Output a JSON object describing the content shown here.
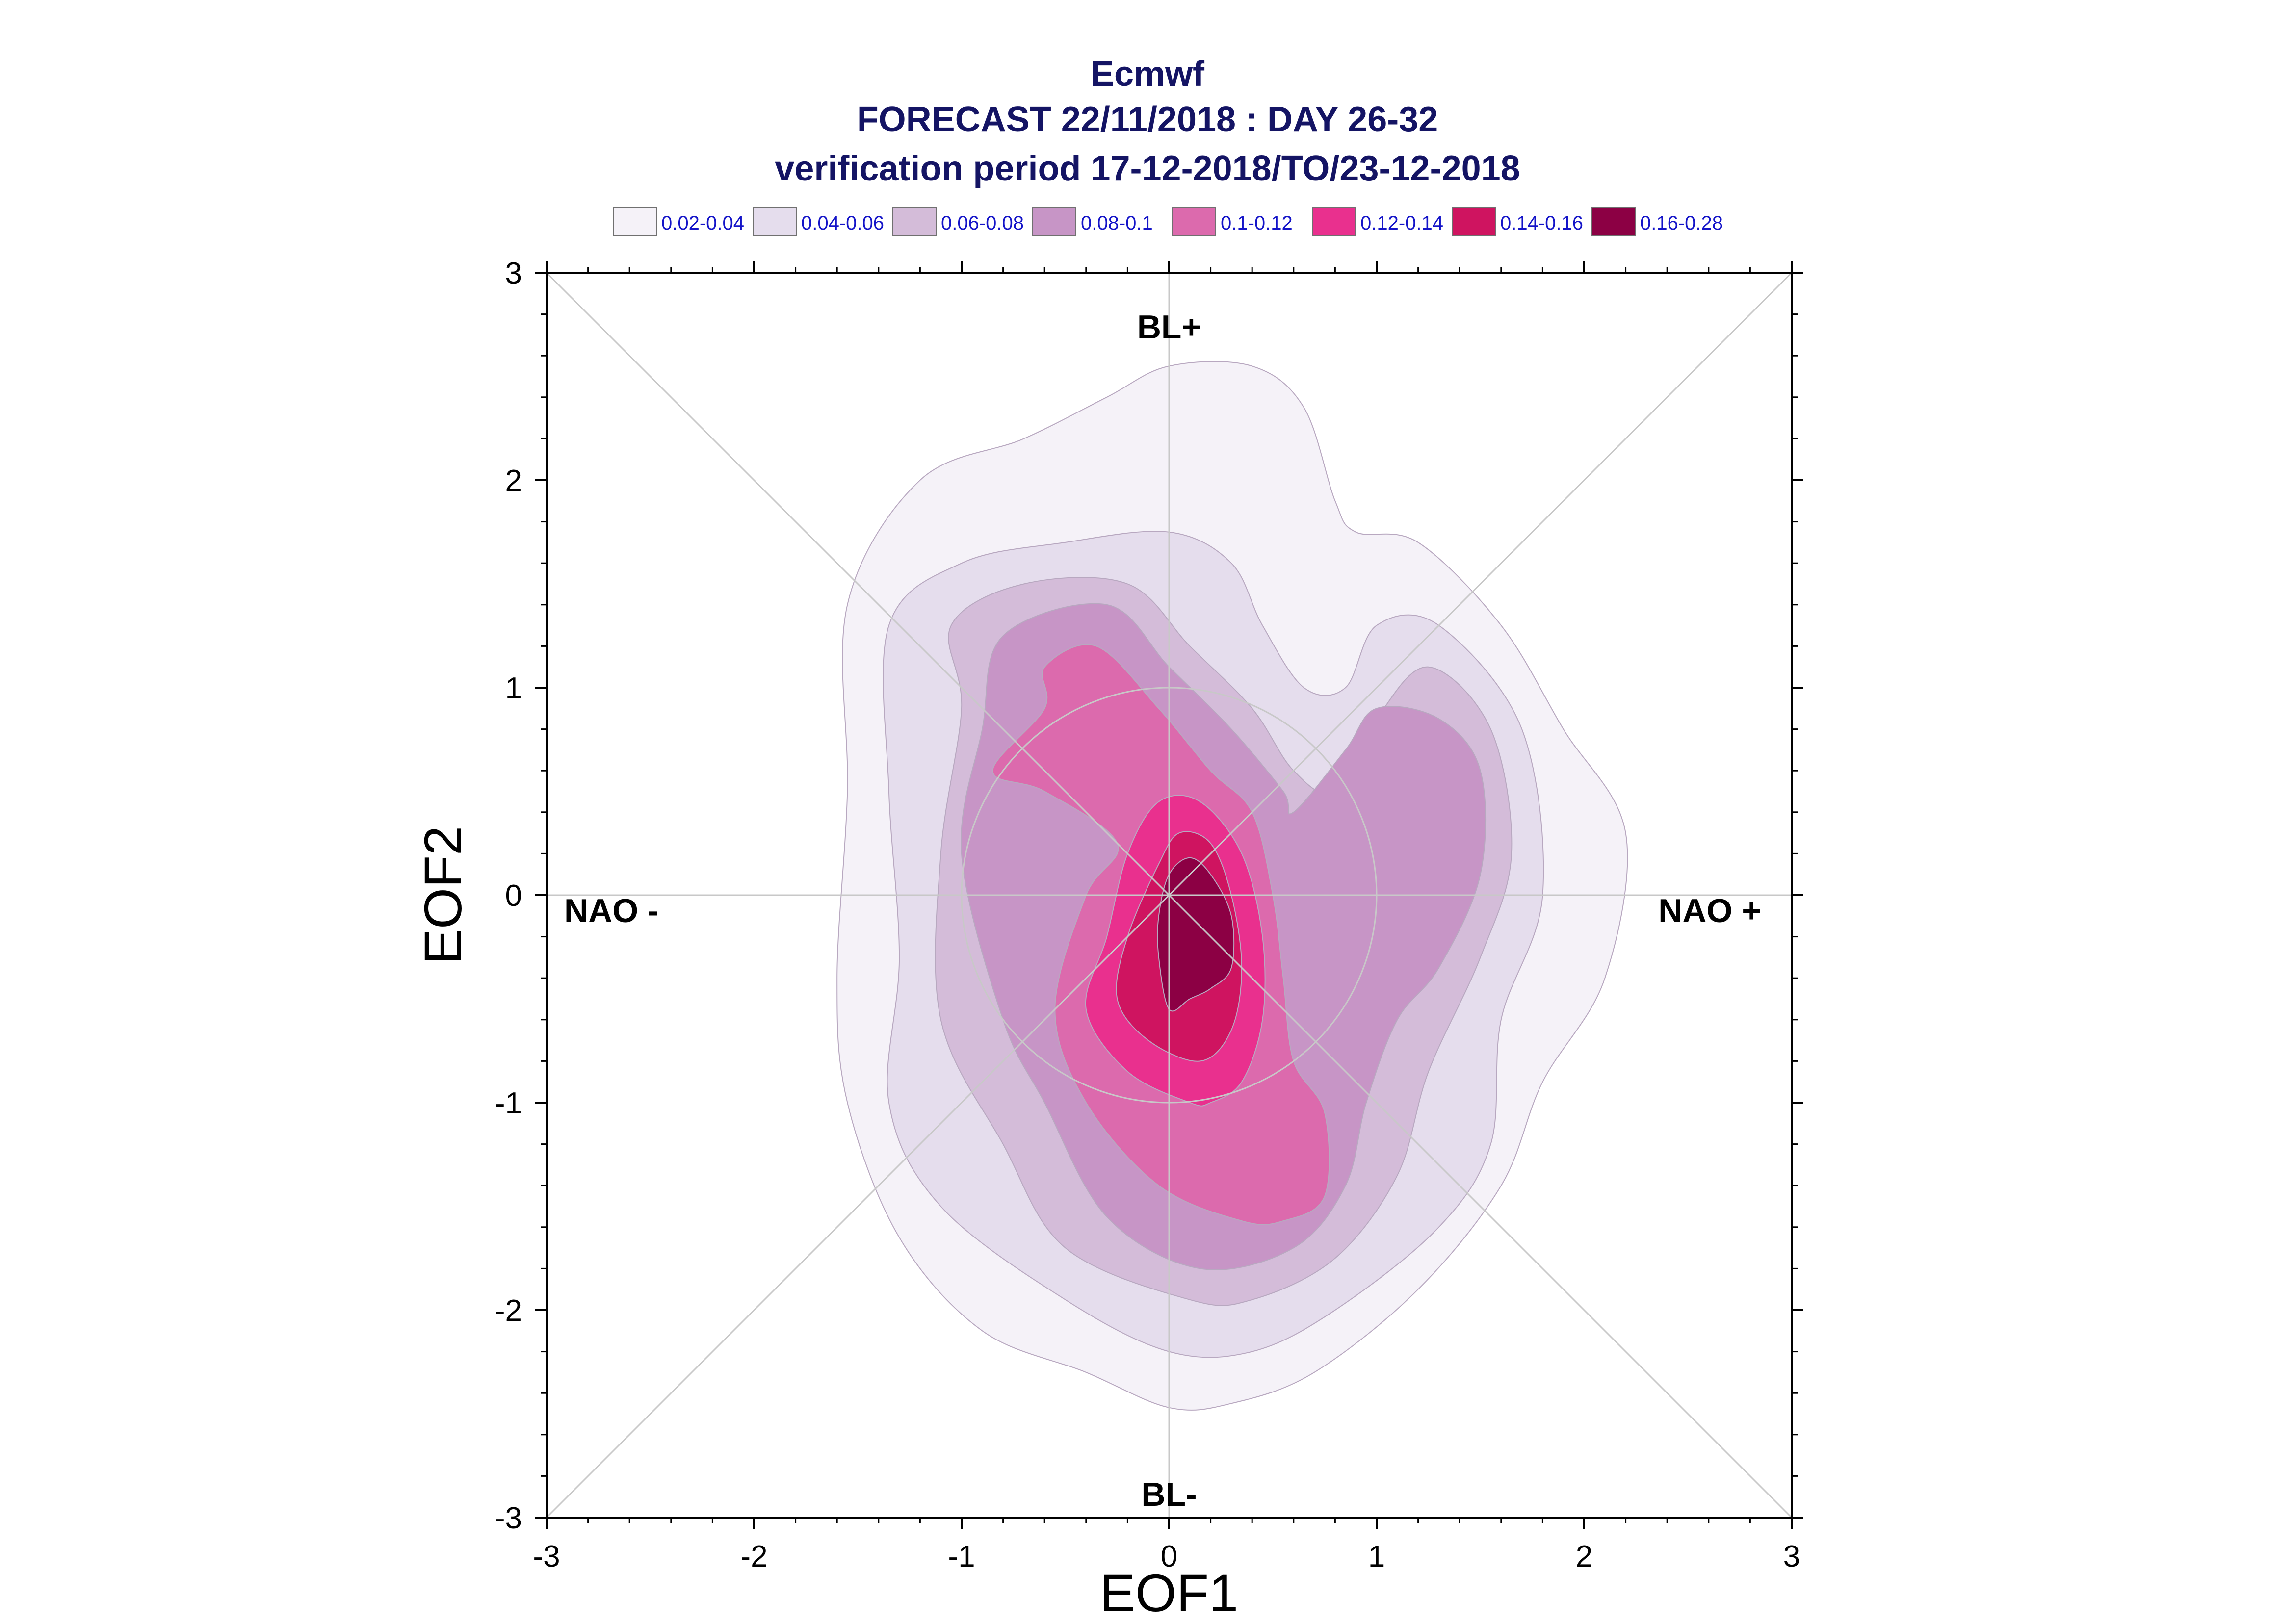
{
  "chart_data": {
    "type": "contour",
    "title": "Ecmwf",
    "subtitle_lines": [
      "FORECAST 22/11/2018 : DAY 26-32",
      "verification period 17-12-2018/TO/23-12-2018"
    ],
    "xlabel": "EOF1",
    "ylabel": "EOF2",
    "xlim": [
      -3,
      3
    ],
    "ylim": [
      -3,
      3
    ],
    "x_ticks": [
      "-3",
      "-2",
      "-1",
      "0",
      "1",
      "2",
      "3"
    ],
    "y_ticks": [
      "3",
      "2",
      "1",
      "0",
      "-1",
      "-2",
      "-3"
    ],
    "legend": [
      {
        "label": "0.02-0.04",
        "color": "#f5f2f8"
      },
      {
        "label": "0.04-0.06",
        "color": "#e5dded"
      },
      {
        "label": "0.06-0.08",
        "color": "#d4bcd9"
      },
      {
        "label": "0.08-0.1",
        "color": "#c795c6"
      },
      {
        "label": "0.1-0.12",
        "color": "#dc6aad"
      },
      {
        "label": "0.12-0.14",
        "color": "#e9308e"
      },
      {
        "label": "0.14-0.16",
        "color": "#cf1460"
      },
      {
        "label": "0.16-0.28",
        "color": "#8c0044"
      }
    ],
    "regime_labels": {
      "top": "BL+",
      "bottom": "BL-",
      "left": "NAO -",
      "right": "NAO +"
    },
    "reference_circle_radius": 1,
    "contours": [
      {
        "level": "0.02-0.04",
        "points": [
          [
            0.0,
            -2.47
          ],
          [
            -0.4,
            -2.3
          ],
          [
            -0.9,
            -2.1
          ],
          [
            -1.3,
            -1.65
          ],
          [
            -1.55,
            -1.0
          ],
          [
            -1.6,
            -0.4
          ],
          [
            -1.55,
            0.5
          ],
          [
            -1.55,
            1.4
          ],
          [
            -1.2,
            2.0
          ],
          [
            -0.7,
            2.2
          ],
          [
            -0.3,
            2.4
          ],
          [
            0.0,
            2.55
          ],
          [
            0.4,
            2.55
          ],
          [
            0.65,
            2.35
          ],
          [
            0.8,
            1.9
          ],
          [
            0.9,
            1.75
          ],
          [
            1.2,
            1.7
          ],
          [
            1.6,
            1.3
          ],
          [
            1.9,
            0.8
          ],
          [
            2.2,
            0.3
          ],
          [
            2.1,
            -0.4
          ],
          [
            1.8,
            -0.9
          ],
          [
            1.6,
            -1.4
          ],
          [
            1.2,
            -1.9
          ],
          [
            0.7,
            -2.3
          ],
          [
            0.3,
            -2.45
          ]
        ]
      },
      {
        "level": "0.04-0.06",
        "points": [
          [
            0.0,
            -2.2
          ],
          [
            -0.5,
            -1.95
          ],
          [
            -1.1,
            -1.5
          ],
          [
            -1.35,
            -1.0
          ],
          [
            -1.3,
            -0.3
          ],
          [
            -1.35,
            0.5
          ],
          [
            -1.35,
            1.3
          ],
          [
            -1.0,
            1.6
          ],
          [
            -0.5,
            1.7
          ],
          [
            0.0,
            1.75
          ],
          [
            0.3,
            1.6
          ],
          [
            0.45,
            1.3
          ],
          [
            0.65,
            1.0
          ],
          [
            0.85,
            1.0
          ],
          [
            1.0,
            1.3
          ],
          [
            1.3,
            1.3
          ],
          [
            1.7,
            0.8
          ],
          [
            1.8,
            0.0
          ],
          [
            1.6,
            -0.6
          ],
          [
            1.55,
            -1.2
          ],
          [
            1.3,
            -1.6
          ],
          [
            0.8,
            -2.0
          ],
          [
            0.4,
            -2.2
          ]
        ]
      },
      {
        "level": "0.06-0.08",
        "points": [
          [
            0.1,
            -1.95
          ],
          [
            -0.5,
            -1.7
          ],
          [
            -0.8,
            -1.2
          ],
          [
            -1.1,
            -0.6
          ],
          [
            -1.1,
            0.2
          ],
          [
            -1.0,
            0.9
          ],
          [
            -1.05,
            1.3
          ],
          [
            -0.7,
            1.5
          ],
          [
            -0.2,
            1.5
          ],
          [
            0.1,
            1.2
          ],
          [
            0.4,
            0.9
          ],
          [
            0.6,
            0.6
          ],
          [
            0.8,
            0.5
          ],
          [
            1.0,
            0.85
          ],
          [
            1.25,
            1.1
          ],
          [
            1.55,
            0.8
          ],
          [
            1.65,
            0.2
          ],
          [
            1.5,
            -0.3
          ],
          [
            1.25,
            -0.85
          ],
          [
            1.1,
            -1.35
          ],
          [
            0.8,
            -1.75
          ],
          [
            0.4,
            -1.95
          ]
        ]
      },
      {
        "level": "0.08-0.1",
        "points": [
          [
            0.15,
            -1.8
          ],
          [
            -0.3,
            -1.55
          ],
          [
            -0.6,
            -1.0
          ],
          [
            -0.8,
            -0.6
          ],
          [
            -1.0,
            0.2
          ],
          [
            -0.9,
            0.8
          ],
          [
            -0.8,
            1.25
          ],
          [
            -0.3,
            1.4
          ],
          [
            0.0,
            1.1
          ],
          [
            0.3,
            0.8
          ],
          [
            0.55,
            0.5
          ],
          [
            0.6,
            0.4
          ],
          [
            0.85,
            0.7
          ],
          [
            1.0,
            0.9
          ],
          [
            1.3,
            0.85
          ],
          [
            1.5,
            0.6
          ],
          [
            1.5,
            0.1
          ],
          [
            1.3,
            -0.35
          ],
          [
            1.1,
            -0.6
          ],
          [
            0.95,
            -1.0
          ],
          [
            0.85,
            -1.4
          ],
          [
            0.6,
            -1.7
          ]
        ]
      },
      {
        "level": "0.1-0.12",
        "points": [
          [
            0.35,
            -1.57
          ],
          [
            -0.05,
            -1.4
          ],
          [
            -0.4,
            -1.0
          ],
          [
            -0.55,
            -0.55
          ],
          [
            -0.4,
            0.0
          ],
          [
            -0.25,
            0.25
          ],
          [
            -0.6,
            0.5
          ],
          [
            -0.85,
            0.6
          ],
          [
            -0.6,
            0.9
          ],
          [
            -0.6,
            1.1
          ],
          [
            -0.35,
            1.2
          ],
          [
            -0.05,
            0.9
          ],
          [
            0.2,
            0.6
          ],
          [
            0.4,
            0.4
          ],
          [
            0.5,
            0.0
          ],
          [
            0.55,
            -0.4
          ],
          [
            0.6,
            -0.8
          ],
          [
            0.75,
            -1.05
          ],
          [
            0.75,
            -1.45
          ],
          [
            0.55,
            -1.57
          ]
        ]
      },
      {
        "level": "0.12-0.14",
        "points": [
          [
            0.1,
            -1.0
          ],
          [
            -0.2,
            -0.85
          ],
          [
            -0.4,
            -0.55
          ],
          [
            -0.3,
            -0.2
          ],
          [
            -0.2,
            0.2
          ],
          [
            -0.05,
            0.45
          ],
          [
            0.15,
            0.45
          ],
          [
            0.35,
            0.2
          ],
          [
            0.45,
            -0.2
          ],
          [
            0.45,
            -0.6
          ],
          [
            0.35,
            -0.9
          ],
          [
            0.2,
            -1.0
          ]
        ]
      },
      {
        "level": "0.14-0.16",
        "points": [
          [
            0.15,
            -0.8
          ],
          [
            -0.1,
            -0.7
          ],
          [
            -0.25,
            -0.5
          ],
          [
            -0.2,
            -0.2
          ],
          [
            -0.05,
            0.15
          ],
          [
            0.05,
            0.3
          ],
          [
            0.2,
            0.25
          ],
          [
            0.3,
            0.0
          ],
          [
            0.35,
            -0.35
          ],
          [
            0.3,
            -0.65
          ]
        ]
      },
      {
        "level": "0.16-0.28",
        "points": [
          [
            0.0,
            -0.55
          ],
          [
            -0.05,
            -0.3
          ],
          [
            -0.05,
            -0.1
          ],
          [
            0.0,
            0.1
          ],
          [
            0.1,
            0.18
          ],
          [
            0.2,
            0.1
          ],
          [
            0.3,
            -0.1
          ],
          [
            0.3,
            -0.35
          ],
          [
            0.2,
            -0.45
          ],
          [
            0.1,
            -0.5
          ]
        ]
      }
    ]
  }
}
